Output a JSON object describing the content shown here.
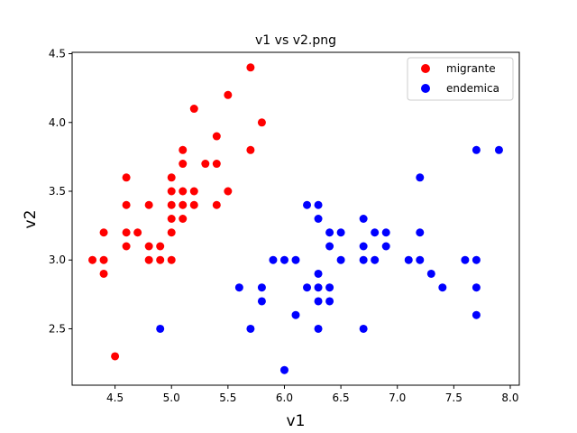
{
  "chart_data": {
    "type": "scatter",
    "title": "v1 vs v2.png",
    "xlabel": "v1",
    "ylabel": "v2",
    "xlim": [
      4.12,
      8.08
    ],
    "ylim": [
      2.09,
      4.51
    ],
    "xticks": [
      "4.5",
      "5.0",
      "5.5",
      "6.0",
      "6.5",
      "7.0",
      "7.5",
      "8.0"
    ],
    "yticks": [
      "2.5",
      "3.0",
      "3.5",
      "4.0",
      "4.5"
    ],
    "grid": false,
    "legend_position": "top-right",
    "series": [
      {
        "name": "migrante",
        "color": "#ff0000",
        "points": [
          [
            4.3,
            3.0
          ],
          [
            4.4,
            2.9
          ],
          [
            4.4,
            3.0
          ],
          [
            4.4,
            3.2
          ],
          [
            4.5,
            2.3
          ],
          [
            4.6,
            3.1
          ],
          [
            4.6,
            3.2
          ],
          [
            4.6,
            3.4
          ],
          [
            4.6,
            3.6
          ],
          [
            4.7,
            3.2
          ],
          [
            4.8,
            3.0
          ],
          [
            4.8,
            3.1
          ],
          [
            4.8,
            3.4
          ],
          [
            4.9,
            3.0
          ],
          [
            4.9,
            3.1
          ],
          [
            5.0,
            3.0
          ],
          [
            5.0,
            3.2
          ],
          [
            5.0,
            3.3
          ],
          [
            5.0,
            3.4
          ],
          [
            5.0,
            3.5
          ],
          [
            5.0,
            3.6
          ],
          [
            5.1,
            3.3
          ],
          [
            5.1,
            3.4
          ],
          [
            5.1,
            3.5
          ],
          [
            5.1,
            3.7
          ],
          [
            5.1,
            3.8
          ],
          [
            5.2,
            3.4
          ],
          [
            5.2,
            3.5
          ],
          [
            5.2,
            4.1
          ],
          [
            5.3,
            3.7
          ],
          [
            5.4,
            3.4
          ],
          [
            5.4,
            3.7
          ],
          [
            5.4,
            3.9
          ],
          [
            5.5,
            3.5
          ],
          [
            5.5,
            4.2
          ],
          [
            5.7,
            3.8
          ],
          [
            5.7,
            4.4
          ],
          [
            5.8,
            4.0
          ]
        ]
      },
      {
        "name": "endemica",
        "color": "#0000ff",
        "points": [
          [
            4.9,
            2.5
          ],
          [
            5.6,
            2.8
          ],
          [
            5.7,
            2.5
          ],
          [
            5.8,
            2.7
          ],
          [
            5.8,
            2.8
          ],
          [
            5.9,
            3.0
          ],
          [
            6.0,
            2.2
          ],
          [
            6.0,
            3.0
          ],
          [
            6.1,
            2.6
          ],
          [
            6.1,
            3.0
          ],
          [
            6.2,
            2.8
          ],
          [
            6.2,
            3.4
          ],
          [
            6.3,
            2.5
          ],
          [
            6.3,
            2.7
          ],
          [
            6.3,
            2.8
          ],
          [
            6.3,
            2.9
          ],
          [
            6.3,
            3.3
          ],
          [
            6.3,
            3.4
          ],
          [
            6.4,
            2.7
          ],
          [
            6.4,
            2.8
          ],
          [
            6.4,
            3.1
          ],
          [
            6.4,
            3.2
          ],
          [
            6.5,
            3.0
          ],
          [
            6.5,
            3.2
          ],
          [
            6.7,
            2.5
          ],
          [
            6.7,
            3.0
          ],
          [
            6.7,
            3.1
          ],
          [
            6.7,
            3.3
          ],
          [
            6.8,
            3.0
          ],
          [
            6.8,
            3.2
          ],
          [
            6.9,
            3.1
          ],
          [
            6.9,
            3.2
          ],
          [
            7.1,
            3.0
          ],
          [
            7.2,
            3.0
          ],
          [
            7.2,
            3.2
          ],
          [
            7.2,
            3.6
          ],
          [
            7.3,
            2.9
          ],
          [
            7.4,
            2.8
          ],
          [
            7.6,
            3.0
          ],
          [
            7.7,
            2.6
          ],
          [
            7.7,
            2.8
          ],
          [
            7.7,
            3.0
          ],
          [
            7.7,
            3.8
          ],
          [
            7.9,
            3.8
          ]
        ]
      }
    ]
  }
}
